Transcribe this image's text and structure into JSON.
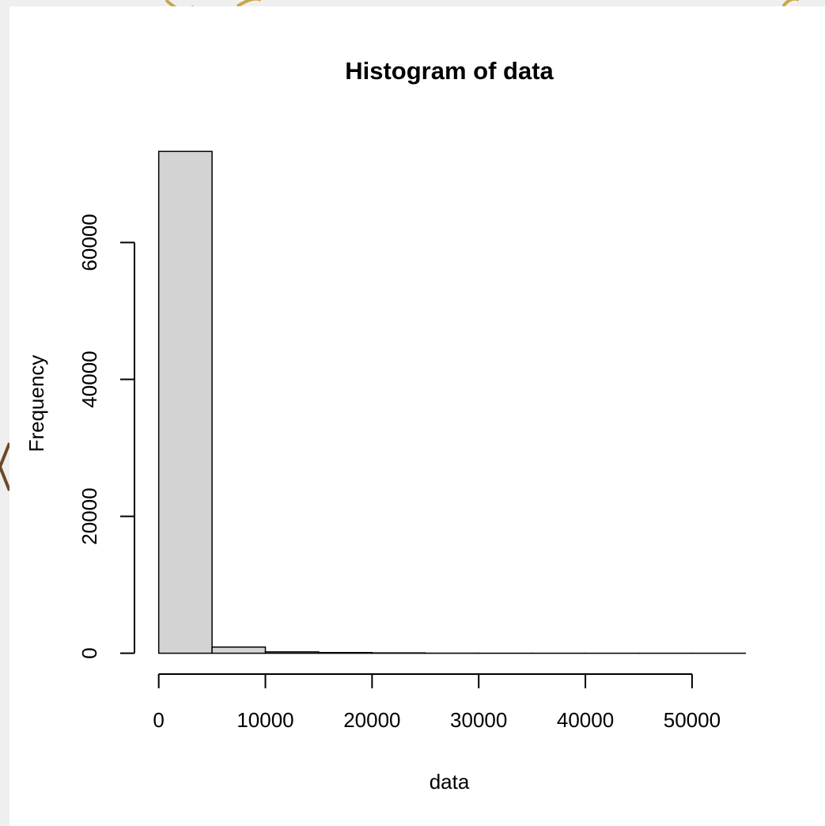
{
  "chart_data": {
    "type": "histogram",
    "title": "Histogram of data",
    "x_label": "data",
    "y_label": "Frequency",
    "bins": [
      0,
      5000,
      10000,
      15000,
      20000,
      25000,
      30000,
      35000,
      40000,
      45000,
      50000,
      55000
    ],
    "values": [
      73300,
      900,
      200,
      100,
      50,
      10,
      5,
      2,
      1,
      1,
      1
    ],
    "color": "#d3d3d3",
    "xlim": [
      -2200,
      57200
    ],
    "xticks": [
      0,
      10000,
      20000,
      30000,
      40000,
      50000
    ],
    "ylim": [
      -2930,
      76230
    ],
    "yticks": [
      0,
      20000,
      40000,
      60000
    ]
  }
}
